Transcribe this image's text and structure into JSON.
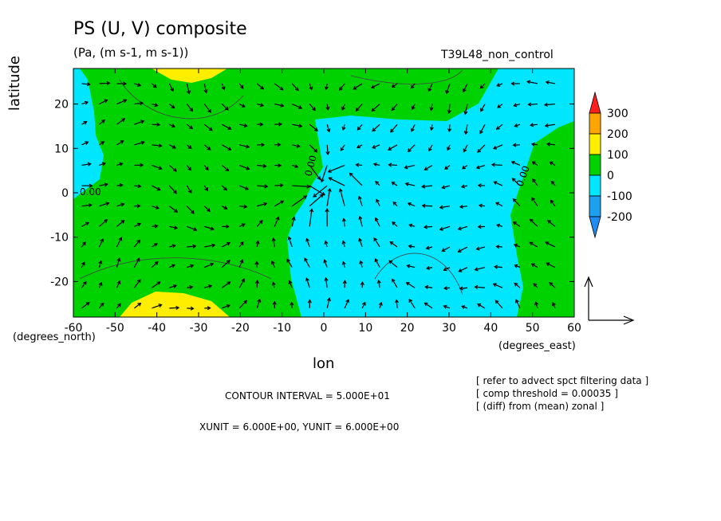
{
  "title": "PS (U, V) composite",
  "units_line": "(Pa, (m s-1, m s-1))",
  "run_label": "T39L48_non_control",
  "x_axis_label": "lon",
  "y_axis_label": "latitude",
  "x_unit_note": "(degrees_east)",
  "y_unit_note": "(degrees_north)",
  "contour_interval": "CONTOUR INTERVAL = 5.000E+01",
  "vector_units": "XUNIT = 6.000E+00, YUNIT = 6.000E+00",
  "notes": [
    "[ refer to advect spct filtering data ]",
    "[ comp threshold = 0.00035 ]",
    "[ (diff) from (mean) zonal ]"
  ],
  "contour_labels": [
    "0.00",
    "0.00",
    "0.00"
  ],
  "colors": {
    "below_-200": "#1e8cf0",
    "-200_-100": "#1ea0f0",
    "-100_0": "#00e6ff",
    "0_100": "#00d200",
    "100_200": "#ffee00",
    "200_300": "#ffa500",
    "above_300": "#ff1e1e"
  },
  "chart_data": {
    "type": "heatmap",
    "subtype": "filled contour with wind vectors",
    "xlim": [
      -60,
      60
    ],
    "ylim": [
      -28,
      28
    ],
    "x_ticks": [
      -60,
      -50,
      -40,
      -30,
      -20,
      -10,
      0,
      10,
      20,
      30,
      40,
      50,
      60
    ],
    "x_tick_labels": [
      "-60",
      "-50",
      "-40",
      "-30",
      "-20",
      "-10",
      "0",
      "10",
      "20",
      "30",
      "40",
      "50",
      "60"
    ],
    "y_ticks": [
      -20,
      -10,
      0,
      10,
      20
    ],
    "y_tick_labels": [
      "-20",
      "-10",
      "0",
      "10",
      "20"
    ],
    "colorbar": {
      "levels": [
        -200,
        -100,
        0,
        100,
        200,
        300
      ],
      "labels": [
        "300",
        "200",
        "100",
        "0",
        "-100",
        "-200"
      ],
      "colors": [
        "#1e8cf0",
        "#1ea0f0",
        "#00e6ff",
        "#00d200",
        "#ffee00",
        "#ffa500",
        "#ff1e1e"
      ]
    },
    "regions": [
      {
        "level": "0_100",
        "description": "west and far east of domain"
      },
      {
        "level": "-100_0",
        "description": "central and eastern tropics, northwest"
      },
      {
        "level": "100_200",
        "description": "north near -40 lon and south near -40 lon"
      }
    ],
    "grid": false
  }
}
